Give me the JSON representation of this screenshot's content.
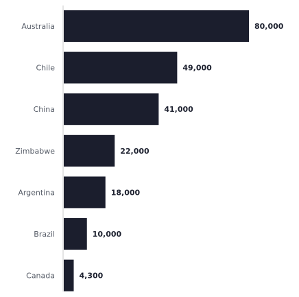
{
  "chart_data": {
    "type": "bar",
    "orientation": "horizontal",
    "title": "",
    "xlabel": "",
    "ylabel": "",
    "categories": [
      "Australia",
      "Chile",
      "China",
      "Zimbabwe",
      "Argentina",
      "Brazil",
      "Canada"
    ],
    "values": [
      80000,
      49000,
      41000,
      22000,
      18000,
      10000,
      4300
    ],
    "value_labels": [
      "80,000",
      "49,000",
      "41,000",
      "22,000",
      "18,000",
      "10,000",
      "4,300"
    ],
    "xlim": [
      0,
      80000
    ],
    "grid": false,
    "legend": "none",
    "bar_color": "#1b1e2d",
    "axis_color": "#c8c8c8"
  }
}
